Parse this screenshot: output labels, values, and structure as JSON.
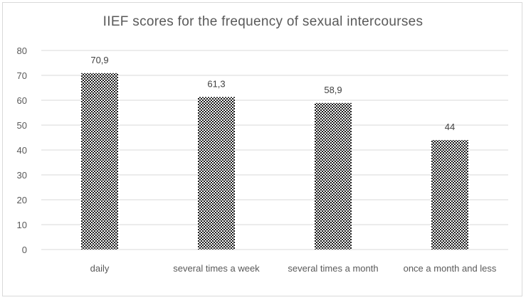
{
  "chart_data": {
    "type": "bar",
    "title": "IIEF scores for the frequency of sexual intercourses",
    "categories": [
      "daily",
      "several times a week",
      "several times a month",
      "once a month and less"
    ],
    "values": [
      70.9,
      61.3,
      58.9,
      44
    ],
    "data_labels": [
      "70,9",
      "61,3",
      "58,9",
      "44"
    ],
    "yticks": [
      "0",
      "10",
      "20",
      "30",
      "40",
      "50",
      "60",
      "70",
      "80"
    ],
    "xlabel": "",
    "ylabel": "",
    "ylim": [
      0,
      80
    ],
    "grid": true,
    "bar_fill": "checkered",
    "colors": {
      "bar_dark": "#1a1a1a",
      "bar_light": "#ffffff",
      "grid": "#d9d9d9",
      "text": "#595959"
    }
  }
}
